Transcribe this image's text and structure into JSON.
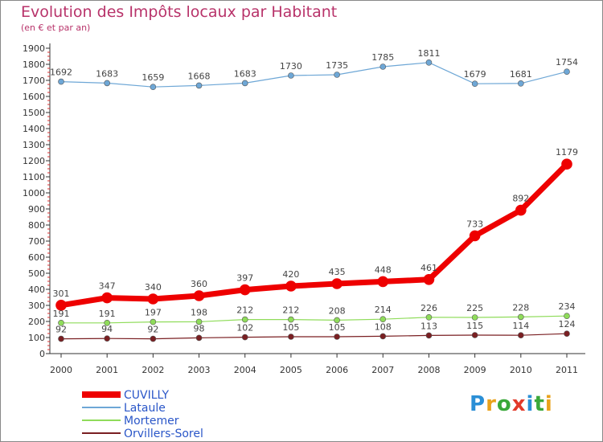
{
  "title": "Evolution des Impôts locaux par Habitant",
  "subtitle": "(en € et par an)",
  "logo": {
    "text": "Proxiti",
    "letters": [
      "P",
      "r",
      "o",
      "x",
      "i",
      "t",
      "i"
    ],
    "colors": [
      "#2a8fd6",
      "#e9a21b",
      "#3aa83a",
      "#e23a2a",
      "#2a8fd6",
      "#3aa83a",
      "#e9a21b"
    ]
  },
  "chart_data": {
    "type": "line",
    "x": [
      "2000",
      "2001",
      "2002",
      "2003",
      "2004",
      "2005",
      "2006",
      "2007",
      "2008",
      "2009",
      "2010",
      "2011"
    ],
    "yticks": [
      0,
      100,
      200,
      300,
      400,
      500,
      600,
      700,
      800,
      900,
      1000,
      1100,
      1200,
      1300,
      1400,
      1500,
      1600,
      1700,
      1800,
      1900
    ],
    "ylim": [
      0,
      1900
    ],
    "grid": false,
    "legend_position": "bottom-left",
    "series": [
      {
        "name": "CUVILLY",
        "color": "#ee0000",
        "emphasis": true,
        "values": [
          301,
          347,
          340,
          360,
          397,
          420,
          435,
          448,
          461,
          733,
          892,
          1179
        ],
        "labels": [
          "301",
          "347",
          "340",
          "360",
          "397",
          "420",
          "435",
          "448",
          "461",
          "733",
          "892",
          "1179"
        ]
      },
      {
        "name": "Lataule",
        "color": "#6ea7d6",
        "emphasis": false,
        "values": [
          1692,
          1683,
          1659,
          1668,
          1683,
          1730,
          1735,
          1785,
          1811,
          1679,
          1681,
          1754
        ],
        "labels": [
          "1692",
          "1683",
          "1659",
          "1668",
          "1683",
          "1730",
          "1735",
          "1785",
          "1811",
          "1679",
          "1681",
          "1754"
        ]
      },
      {
        "name": "Mortemer",
        "color": "#8fdc5a",
        "emphasis": false,
        "values": [
          191,
          191,
          197,
          198,
          212,
          212,
          208,
          214,
          226,
          225,
          228,
          234
        ],
        "labels": [
          "191",
          "191",
          "197",
          "198",
          "212",
          "212",
          "208",
          "214",
          "226",
          "225",
          "228",
          "234"
        ]
      },
      {
        "name": "Orvillers-Sorel",
        "color": "#7a1f22",
        "emphasis": false,
        "values": [
          92,
          94,
          92,
          98,
          102,
          105,
          105,
          108,
          113,
          115,
          114,
          124
        ],
        "labels": [
          "92",
          "94",
          "92",
          "98",
          "102",
          "105",
          "105",
          "108",
          "113",
          "115",
          "114",
          "124"
        ]
      }
    ]
  }
}
